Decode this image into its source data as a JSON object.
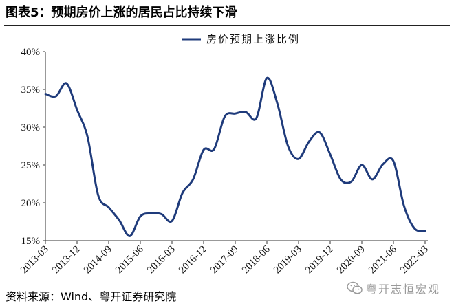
{
  "chart_data": {
    "type": "line",
    "title": "图表5：预期房价上涨的居民占比持续下滑",
    "x": [
      "2013-03",
      "2013-06",
      "2013-09",
      "2013-12",
      "2014-03",
      "2014-06",
      "2014-09",
      "2014-12",
      "2015-03",
      "2015-06",
      "2015-09",
      "2015-12",
      "2016-03",
      "2016-06",
      "2016-09",
      "2016-12",
      "2017-03",
      "2017-06",
      "2017-09",
      "2017-12",
      "2018-03",
      "2018-06",
      "2018-09",
      "2018-12",
      "2019-03",
      "2019-06",
      "2019-09",
      "2019-12",
      "2020-03",
      "2020-06",
      "2020-09",
      "2020-12",
      "2021-03",
      "2021-06",
      "2021-09",
      "2021-12",
      "2022-03"
    ],
    "series": [
      {
        "name": "房价预期上涨比例",
        "color": "#1f3b7b",
        "values": [
          34.4,
          34.1,
          35.8,
          32.3,
          28.7,
          21.0,
          19.4,
          17.7,
          15.6,
          18.2,
          18.6,
          18.5,
          17.6,
          21.3,
          23.1,
          27.0,
          27.1,
          31.4,
          31.8,
          32.0,
          31.2,
          36.5,
          33.1,
          27.5,
          25.8,
          28.1,
          29.3,
          26.4,
          23.1,
          22.8,
          25.0,
          23.1,
          25.1,
          25.5,
          19.6,
          16.6,
          16.3
        ]
      }
    ],
    "xticks": [
      "2013-03",
      "2013-12",
      "2014-09",
      "2015-06",
      "2016-03",
      "2016-12",
      "2017-09",
      "2018-06",
      "2019-03",
      "2019-12",
      "2020-09",
      "2021-06",
      "2022-03"
    ],
    "xlim": [
      "2013-03",
      "2022-03"
    ],
    "yticks": [
      15,
      20,
      25,
      30,
      35,
      40
    ],
    "ytick_labels": [
      "15%",
      "20%",
      "25%",
      "30%",
      "35%",
      "40%"
    ],
    "ylim": [
      15,
      40
    ],
    "grid": false,
    "legend": {
      "position": "top"
    }
  },
  "source": "资料来源：Wind、粤开证券研究院",
  "watermark": {
    "text": "粤开志恒宏观",
    "icon": "wechat-icon"
  },
  "colors": {
    "title_rule": "#222222",
    "axis": "#333333",
    "watermark": "#9a9a9a"
  }
}
